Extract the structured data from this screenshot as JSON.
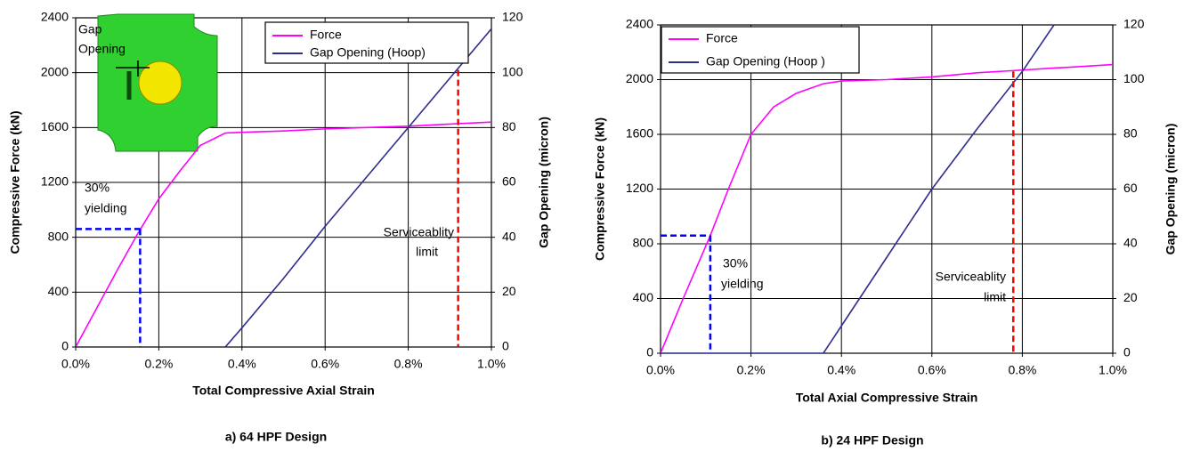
{
  "chart_data": [
    {
      "type": "line",
      "title": "a) 64 HPF Design",
      "x_label": "Total Compressive Axial Strain",
      "y_label": "Compressive Force (kN)",
      "y2_label": "Gap Opening (micron)",
      "x": [
        0,
        0.05,
        0.1,
        0.15,
        0.2,
        0.25,
        0.3,
        0.36,
        0.4,
        0.5,
        0.6,
        0.7,
        0.8,
        0.9,
        1.0
      ],
      "series": [
        {
          "name": "Force",
          "color": "#ff00ff",
          "values": [
            0,
            280,
            560,
            830,
            1080,
            1280,
            1470,
            1560,
            1565,
            1575,
            1590,
            1600,
            1610,
            1625,
            1640
          ]
        },
        {
          "name": "Gap Opening (Hoop)",
          "color": "#2e2e8c",
          "axis": "y2",
          "values": [
            0,
            0,
            0,
            0,
            0,
            0,
            0,
            0,
            7,
            25,
            44,
            62,
            80,
            98,
            116
          ]
        }
      ],
      "xlim": [
        0,
        1.0
      ],
      "xticks": [
        {
          "value": 0,
          "label": "0.0%"
        },
        {
          "value": 0.2,
          "label": "0.2%"
        },
        {
          "value": 0.4,
          "label": "0.4%"
        },
        {
          "value": 0.6,
          "label": "0.6%"
        },
        {
          "value": 0.8,
          "label": "0.8%"
        },
        {
          "value": 1.0,
          "label": "1.0%"
        }
      ],
      "ylim": [
        0,
        2400
      ],
      "yticks": [
        0,
        400,
        800,
        1200,
        1600,
        2000,
        2400
      ],
      "y2lim": [
        0,
        120
      ],
      "y2ticks": [
        0,
        20,
        40,
        60,
        80,
        100,
        120
      ],
      "grid": true,
      "legend": "top-center",
      "inset_label": [
        "Gap",
        "Opening"
      ],
      "annotations": [
        {
          "text": [
            "30%",
            "yielding"
          ],
          "x": 0.155,
          "y": 860,
          "color": "#0000ff"
        },
        {
          "text": [
            "Serviceablity",
            "limit"
          ],
          "x": 0.92,
          "y": 2020,
          "color": "#ff0000"
        }
      ]
    },
    {
      "type": "line",
      "title": "b) 24 HPF Design",
      "x_label": "Total Axial Compressive Strain",
      "y_label": "Compressive Force (kN)",
      "y2_label": "Gap Opening (micron)",
      "x": [
        0,
        0.05,
        0.11,
        0.15,
        0.2,
        0.25,
        0.3,
        0.36,
        0.4,
        0.5,
        0.6,
        0.7,
        0.8,
        0.87,
        0.9,
        1.0
      ],
      "series": [
        {
          "name": "Force",
          "color": "#ff00ff",
          "values": [
            0,
            400,
            860,
            1200,
            1600,
            1800,
            1900,
            1970,
            1990,
            2000,
            2020,
            2050,
            2070,
            2085,
            2090,
            2110
          ]
        },
        {
          "name": "Gap Opening (Hoop )",
          "color": "#2e2e8c",
          "axis": "y2",
          "values": [
            0,
            0,
            0,
            0,
            0,
            0,
            0,
            0,
            10,
            35,
            60,
            82,
            103,
            120,
            null,
            null
          ]
        }
      ],
      "xlim": [
        0,
        1.0
      ],
      "xticks": [
        {
          "value": 0,
          "label": "0.0%"
        },
        {
          "value": 0.2,
          "label": "0.2%"
        },
        {
          "value": 0.4,
          "label": "0.4%"
        },
        {
          "value": 0.6,
          "label": "0.6%"
        },
        {
          "value": 0.8,
          "label": "0.8%"
        },
        {
          "value": 1.0,
          "label": "1.0%"
        }
      ],
      "ylim": [
        0,
        2400
      ],
      "yticks": [
        0,
        400,
        800,
        1200,
        1600,
        2000,
        2400
      ],
      "y2lim": [
        0,
        120
      ],
      "y2ticks": [
        0,
        20,
        40,
        60,
        80,
        100,
        120
      ],
      "grid": true,
      "legend": "top-left",
      "annotations": [
        {
          "text": [
            "30%",
            "yielding"
          ],
          "x": 0.11,
          "y": 860,
          "color": "#0000ff"
        },
        {
          "text": [
            "Serviceablity",
            "limit"
          ],
          "x": 0.78,
          "y": 2060,
          "color": "#ff0000"
        }
      ]
    }
  ]
}
